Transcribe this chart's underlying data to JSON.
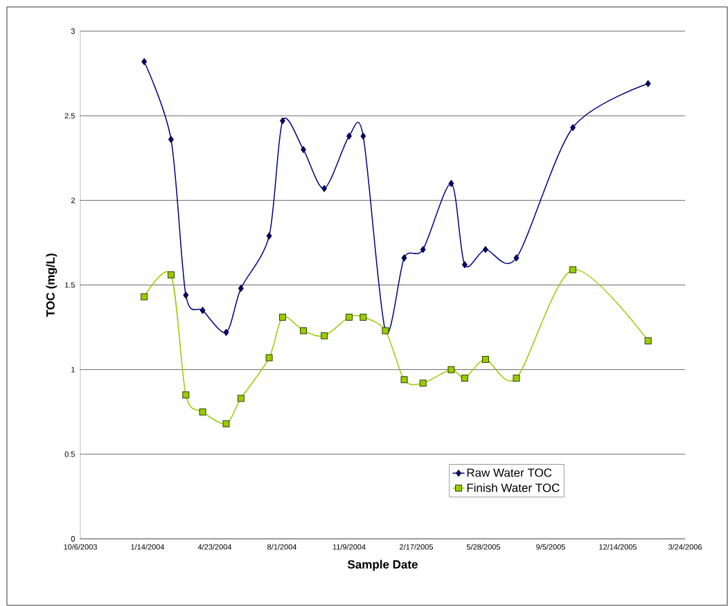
{
  "chart_data": {
    "type": "line",
    "xlabel": "Sample Date",
    "ylabel": "TOC (mg/L)",
    "x": [
      "2004-01-09",
      "2004-02-18",
      "2004-03-11",
      "2004-04-05",
      "2004-05-10",
      "2004-06-01",
      "2004-07-13",
      "2004-08-02",
      "2004-09-02",
      "2004-10-03",
      "2004-11-09",
      "2004-11-30",
      "2005-01-02",
      "2005-01-30",
      "2005-02-27",
      "2005-04-10",
      "2005-04-30",
      "2005-05-31",
      "2005-07-16",
      "2005-10-08",
      "2006-01-28"
    ],
    "series": [
      {
        "name": "Raw Water TOC",
        "color": "#000080",
        "marker": "diamond",
        "values": [
          2.82,
          2.36,
          1.44,
          1.35,
          1.22,
          1.48,
          1.79,
          2.47,
          2.3,
          2.07,
          2.38,
          2.38,
          1.23,
          1.66,
          1.71,
          2.1,
          1.62,
          1.71,
          1.66,
          2.43,
          2.69
        ]
      },
      {
        "name": "Finish Water TOC",
        "color": "#99cc00",
        "marker": "square",
        "values": [
          1.43,
          1.56,
          0.85,
          0.75,
          0.68,
          0.83,
          1.07,
          1.31,
          1.23,
          1.2,
          1.31,
          1.31,
          1.23,
          0.94,
          0.92,
          1.0,
          0.95,
          1.06,
          0.95,
          1.59,
          1.17
        ]
      }
    ],
    "xlim": [
      "2003-10-06",
      "2006-03-24"
    ],
    "xticks": [
      {
        "value": "2003-10-06",
        "label": "10/6/2003"
      },
      {
        "value": "2004-01-14",
        "label": "1/14/2004"
      },
      {
        "value": "2004-04-23",
        "label": "4/23/2004"
      },
      {
        "value": "2004-08-01",
        "label": "8/1/2004"
      },
      {
        "value": "2004-11-09",
        "label": "11/9/2004"
      },
      {
        "value": "2005-02-17",
        "label": "2/17/2005"
      },
      {
        "value": "2005-05-28",
        "label": "5/28/2005"
      },
      {
        "value": "2005-09-05",
        "label": "9/5/2005"
      },
      {
        "value": "2005-12-14",
        "label": "12/14/2005"
      },
      {
        "value": "2006-03-24",
        "label": "3/24/2006"
      }
    ],
    "ylim": [
      0,
      3
    ],
    "yticks": [
      0,
      0.5,
      1,
      1.5,
      2,
      2.5,
      3
    ],
    "grid": "y",
    "legend": "bottom right",
    "line_style": "solid"
  }
}
